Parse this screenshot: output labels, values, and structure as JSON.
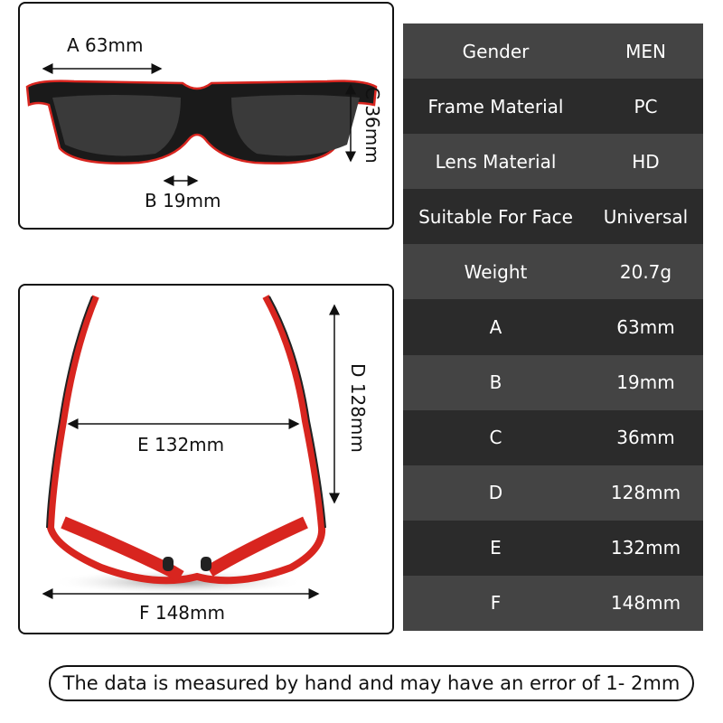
{
  "front_view": {
    "a_label": "A 63mm",
    "b_label": "B 19mm",
    "c_label": "C 36mm"
  },
  "top_view": {
    "d_label": "D 128mm",
    "e_label": "E 132mm",
    "f_label": "F 148mm"
  },
  "specs": [
    {
      "key": "Gender",
      "value": "MEN"
    },
    {
      "key": "Frame Material",
      "value": "PC"
    },
    {
      "key": "Lens Material",
      "value": "HD"
    },
    {
      "key": "Suitable For Face",
      "value": "Universal"
    },
    {
      "key": "Weight",
      "value": "20.7g"
    },
    {
      "key": "A",
      "value": "63mm"
    },
    {
      "key": "B",
      "value": "19mm"
    },
    {
      "key": "C",
      "value": "36mm"
    },
    {
      "key": "D",
      "value": "128mm"
    },
    {
      "key": "E",
      "value": "132mm"
    },
    {
      "key": "F",
      "value": "148mm"
    }
  ],
  "note": "The data is measured by hand and may have an error of 1- 2mm",
  "colors": {
    "frame_red": "#d8251f",
    "row_light": "#444444",
    "row_dark": "#2b2b2b"
  }
}
